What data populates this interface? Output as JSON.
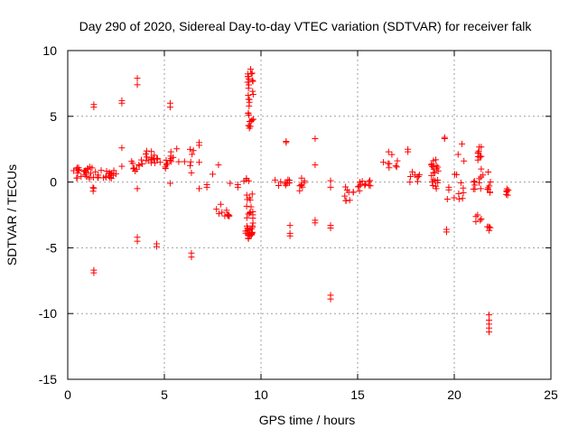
{
  "chart_data": {
    "type": "scatter",
    "title": "Day 290 of 2020, Sidereal Day-to-day VTEC variation (SDTVAR) for receiver falk",
    "xlabel": "GPS time / hours",
    "ylabel": "SDTVAR / TECUs",
    "xlim": [
      0,
      25
    ],
    "ylim": [
      -15,
      10
    ],
    "xticks": [
      0,
      5,
      10,
      15,
      20,
      25
    ],
    "yticks": [
      -15,
      -10,
      -5,
      0,
      5,
      10
    ],
    "xtick_labels": [
      "0",
      "5",
      "10",
      "15",
      "20",
      "25"
    ],
    "ytick_labels": [
      "-15",
      "-10",
      "-5",
      "0",
      "5",
      "10"
    ],
    "grid": true,
    "marker": "plus",
    "color": "#ff0000",
    "clusters": [
      {
        "x": [
          0.3,
          0.7
        ],
        "y": [
          0.3,
          1.2
        ],
        "n": 10
      },
      {
        "x": [
          0.8,
          1.5
        ],
        "y": [
          0.2,
          1.2
        ],
        "n": 16
      },
      {
        "x": [
          1.5,
          2.5
        ],
        "y": [
          0.2,
          1.0
        ],
        "n": 18
      },
      {
        "x": [
          1.3,
          1.4
        ],
        "y": [
          -1.3,
          -0.4
        ],
        "n": 3
      },
      {
        "x": [
          3.3,
          3.8
        ],
        "y": [
          0.6,
          1.8
        ],
        "n": 8
      },
      {
        "x": [
          3.8,
          4.5
        ],
        "y": [
          1.0,
          2.4
        ],
        "n": 14
      },
      {
        "x": [
          4.5,
          4.8
        ],
        "y": [
          1.0,
          2.0
        ],
        "n": 4
      },
      {
        "x": [
          5.0,
          5.5
        ],
        "y": [
          1.0,
          2.4
        ],
        "n": 12
      },
      {
        "x": [
          5.5,
          6.6
        ],
        "y": [
          1.2,
          2.6
        ],
        "n": 8
      },
      {
        "x": [
          7.6,
          8.4
        ],
        "y": [
          -2.6,
          -1.6
        ],
        "n": 12
      },
      {
        "x": [
          9.3,
          9.6
        ],
        "y": [
          3.8,
          8.7
        ],
        "n": 30
      },
      {
        "x": [
          9.2,
          9.6
        ],
        "y": [
          -4.5,
          -0.8
        ],
        "n": 36
      },
      {
        "x": [
          9.1,
          9.4
        ],
        "y": [
          -0.2,
          0.6
        ],
        "n": 4
      },
      {
        "x": [
          10.7,
          11.5
        ],
        "y": [
          -0.4,
          0.4
        ],
        "n": 10
      },
      {
        "x": [
          11.9,
          12.3
        ],
        "y": [
          -0.7,
          0.3
        ],
        "n": 6
      },
      {
        "x": [
          14.2,
          15.2
        ],
        "y": [
          -1.5,
          -0.3
        ],
        "n": 12
      },
      {
        "x": [
          15.1,
          15.7
        ],
        "y": [
          -0.4,
          0.2
        ],
        "n": 10
      },
      {
        "x": [
          16.3,
          17.1
        ],
        "y": [
          1.0,
          2.2
        ],
        "n": 8
      },
      {
        "x": [
          17.5,
          18.2
        ],
        "y": [
          0.0,
          0.8
        ],
        "n": 8
      },
      {
        "x": [
          18.8,
          19.2
        ],
        "y": [
          -0.7,
          1.8
        ],
        "n": 22
      },
      {
        "x": [
          19.6,
          20.5
        ],
        "y": [
          -1.5,
          0.8
        ],
        "n": 12
      },
      {
        "x": [
          20.9,
          21.5
        ],
        "y": [
          -0.8,
          0.6
        ],
        "n": 10
      },
      {
        "x": [
          21.2,
          21.4
        ],
        "y": [
          0.8,
          2.8
        ],
        "n": 12
      },
      {
        "x": [
          21.1,
          21.4
        ],
        "y": [
          -3.1,
          -2.5
        ],
        "n": 5
      },
      {
        "x": [
          21.7,
          21.9
        ],
        "y": [
          -0.8,
          1.0
        ],
        "n": 8
      },
      {
        "x": [
          21.7,
          21.9
        ],
        "y": [
          -3.8,
          -3.4
        ],
        "n": 5
      },
      {
        "x": [
          22.6,
          22.8
        ],
        "y": [
          -1.1,
          -0.5
        ],
        "n": 6
      }
    ],
    "points": [
      {
        "x": 1.35,
        "y": 5.9
      },
      {
        "x": 1.35,
        "y": 5.7
      },
      {
        "x": 1.35,
        "y": -6.7
      },
      {
        "x": 1.35,
        "y": -6.9
      },
      {
        "x": 2.8,
        "y": 6.2
      },
      {
        "x": 2.8,
        "y": 6.0
      },
      {
        "x": 2.8,
        "y": 2.6
      },
      {
        "x": 2.8,
        "y": 1.2
      },
      {
        "x": 3.6,
        "y": 7.9
      },
      {
        "x": 3.6,
        "y": 7.4
      },
      {
        "x": 3.6,
        "y": -4.2
      },
      {
        "x": 3.6,
        "y": -4.5
      },
      {
        "x": 3.6,
        "y": -0.5
      },
      {
        "x": 4.6,
        "y": -4.7
      },
      {
        "x": 4.6,
        "y": -4.9
      },
      {
        "x": 5.3,
        "y": 6.0
      },
      {
        "x": 5.3,
        "y": 5.7
      },
      {
        "x": 5.3,
        "y": -0.1
      },
      {
        "x": 6.4,
        "y": -5.4
      },
      {
        "x": 6.4,
        "y": -5.7
      },
      {
        "x": 6.4,
        "y": 0.7
      },
      {
        "x": 6.8,
        "y": 3.0
      },
      {
        "x": 6.8,
        "y": 2.8
      },
      {
        "x": 6.8,
        "y": 1.5
      },
      {
        "x": 6.8,
        "y": -0.5
      },
      {
        "x": 7.2,
        "y": -0.2
      },
      {
        "x": 7.2,
        "y": -0.4
      },
      {
        "x": 7.5,
        "y": 0.6
      },
      {
        "x": 7.8,
        "y": 1.3
      },
      {
        "x": 8.4,
        "y": -0.1
      },
      {
        "x": 8.8,
        "y": -0.2
      },
      {
        "x": 8.8,
        "y": -0.4
      },
      {
        "x": 11.3,
        "y": 3.1
      },
      {
        "x": 11.3,
        "y": 3.0
      },
      {
        "x": 11.5,
        "y": -3.3
      },
      {
        "x": 11.5,
        "y": -3.9
      },
      {
        "x": 11.5,
        "y": -4.1
      },
      {
        "x": 12.1,
        "y": 0.3
      },
      {
        "x": 12.1,
        "y": -0.2
      },
      {
        "x": 12.8,
        "y": 3.3
      },
      {
        "x": 12.8,
        "y": 1.3
      },
      {
        "x": 12.8,
        "y": -2.9
      },
      {
        "x": 12.8,
        "y": -3.1
      },
      {
        "x": 13.6,
        "y": 0.1
      },
      {
        "x": 13.6,
        "y": -0.4
      },
      {
        "x": 13.6,
        "y": -3.3
      },
      {
        "x": 13.6,
        "y": -3.5
      },
      {
        "x": 13.6,
        "y": -8.6
      },
      {
        "x": 13.6,
        "y": -8.9
      },
      {
        "x": 16.6,
        "y": 2.3
      },
      {
        "x": 17.6,
        "y": 2.5
      },
      {
        "x": 17.6,
        "y": 2.3
      },
      {
        "x": 19.5,
        "y": 3.4
      },
      {
        "x": 19.5,
        "y": 3.3
      },
      {
        "x": 19.6,
        "y": -3.6
      },
      {
        "x": 19.6,
        "y": -3.8
      },
      {
        "x": 20.2,
        "y": 2.1
      },
      {
        "x": 20.4,
        "y": 2.9
      },
      {
        "x": 20.5,
        "y": 1.6
      },
      {
        "x": 21.8,
        "y": -10.1
      },
      {
        "x": 21.8,
        "y": -10.5
      },
      {
        "x": 21.8,
        "y": -10.8
      },
      {
        "x": 21.8,
        "y": -11.1
      },
      {
        "x": 21.8,
        "y": -11.4
      }
    ]
  }
}
